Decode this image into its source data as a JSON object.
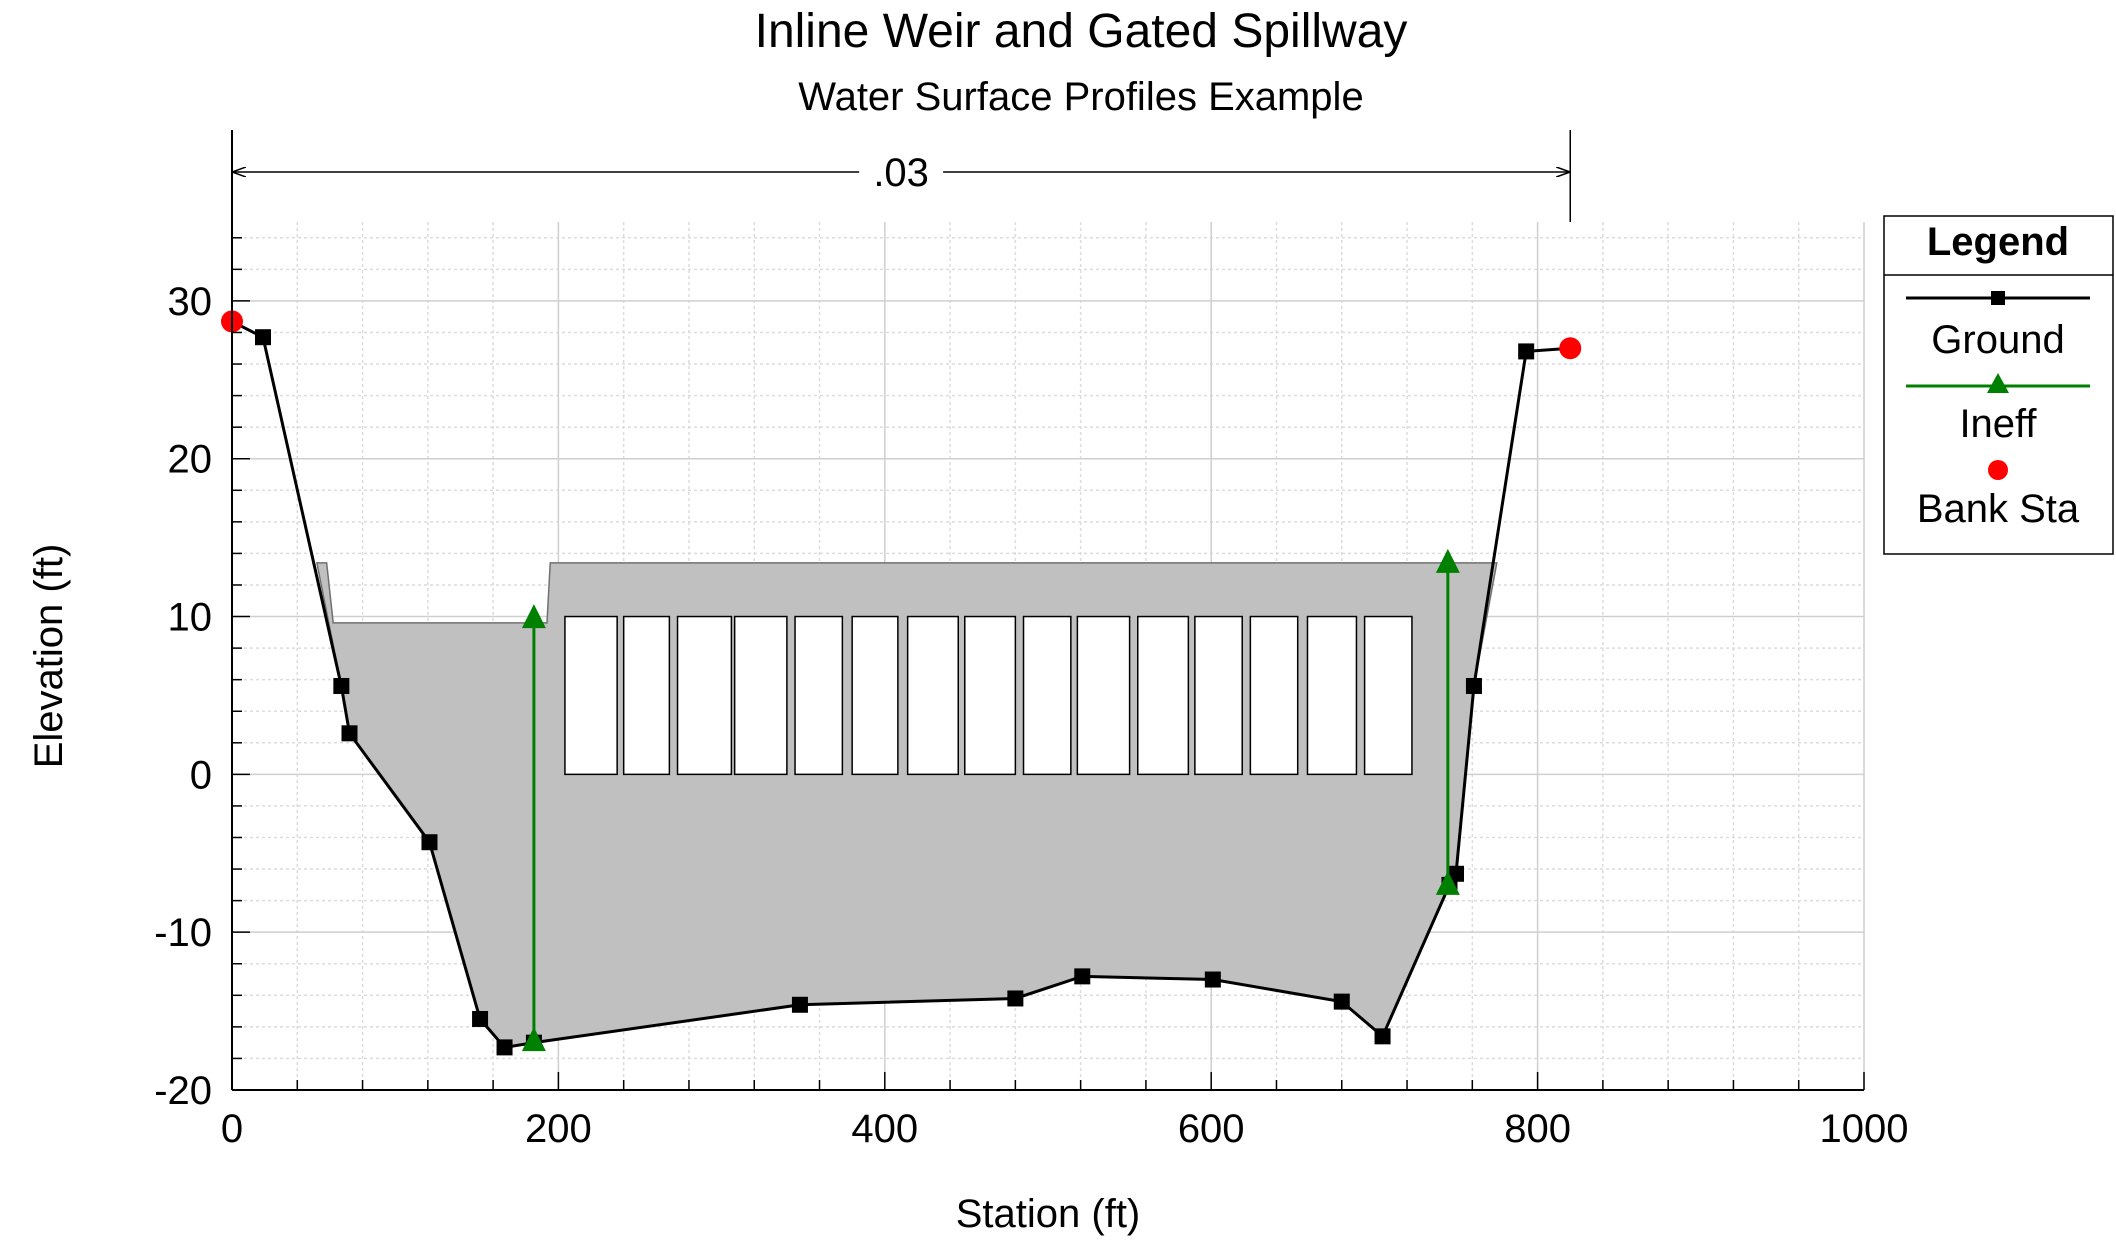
{
  "chart_data": {
    "type": "line",
    "title": "Inline Weir and Gated Spillway",
    "subtitle": "Water Surface Profiles Example",
    "xlabel": "Station (ft)",
    "ylabel": "Elevation (ft)",
    "xlim": [
      0,
      1000
    ],
    "ylim": [
      -20,
      35
    ],
    "x_ticks": [
      0,
      200,
      400,
      600,
      800,
      1000
    ],
    "y_ticks": [
      -20,
      -10,
      0,
      10,
      20,
      30
    ],
    "grid": true,
    "legend_title": "Legend",
    "legend_position": "right",
    "manning_n_label": ".03",
    "manning_n_span": [
      0,
      820
    ],
    "series": [
      {
        "name": "Ground",
        "color": "#000000",
        "marker": "square",
        "points": [
          [
            0,
            28.7
          ],
          [
            19,
            27.7
          ],
          [
            67,
            5.6
          ],
          [
            72,
            2.6
          ],
          [
            121,
            -4.3
          ],
          [
            152,
            -15.5
          ],
          [
            167,
            -17.3
          ],
          [
            185,
            -17.0
          ],
          [
            348,
            -14.6
          ],
          [
            480,
            -14.2
          ],
          [
            521,
            -12.8
          ],
          [
            601,
            -13.0
          ],
          [
            680,
            -14.4
          ],
          [
            705,
            -16.6
          ],
          [
            746,
            -7.0
          ],
          [
            750,
            -6.3
          ],
          [
            761,
            5.6
          ],
          [
            793,
            26.8
          ],
          [
            820,
            27.0
          ]
        ]
      },
      {
        "name": "Ineff",
        "color": "#008000",
        "marker": "triangle",
        "segments": [
          [
            [
              185,
              -16.9
            ],
            [
              185,
              9.9
            ]
          ],
          [
            [
              745,
              -7.0
            ],
            [
              745,
              13.4
            ]
          ]
        ]
      },
      {
        "name": "Bank Sta",
        "color": "#ff0000",
        "marker": "circle",
        "points": [
          [
            0,
            28.7
          ],
          [
            820,
            27.0
          ]
        ]
      }
    ],
    "structure": {
      "fill_color": "#c0c0c0",
      "outline": [
        [
          52,
          13.4
        ],
        [
          58,
          13.4
        ],
        [
          62,
          9.6
        ],
        [
          180,
          9.6
        ],
        [
          193,
          9.6
        ],
        [
          195,
          13.4
        ],
        [
          775,
          13.4
        ],
        [
          761,
          5.6
        ],
        [
          750,
          -6.3
        ],
        [
          746,
          -7.0
        ],
        [
          705,
          -16.6
        ],
        [
          680,
          -14.4
        ],
        [
          601,
          -13.0
        ],
        [
          521,
          -12.8
        ],
        [
          480,
          -14.2
        ],
        [
          348,
          -14.6
        ],
        [
          185,
          -17.0
        ],
        [
          167,
          -17.3
        ],
        [
          152,
          -15.5
        ],
        [
          121,
          -4.3
        ],
        [
          72,
          2.6
        ],
        [
          67,
          5.6
        ]
      ],
      "gate_bottom": 0,
      "gate_top": 10,
      "gate_openings": [
        [
          204,
          236
        ],
        [
          240,
          268
        ],
        [
          273,
          306
        ],
        [
          308,
          340
        ],
        [
          345,
          374
        ],
        [
          380,
          408
        ],
        [
          414,
          445
        ],
        [
          449,
          480
        ],
        [
          485,
          514
        ],
        [
          518,
          550
        ],
        [
          555,
          586
        ],
        [
          590,
          619
        ],
        [
          624,
          653
        ],
        [
          659,
          689
        ],
        [
          694,
          723
        ]
      ]
    }
  }
}
